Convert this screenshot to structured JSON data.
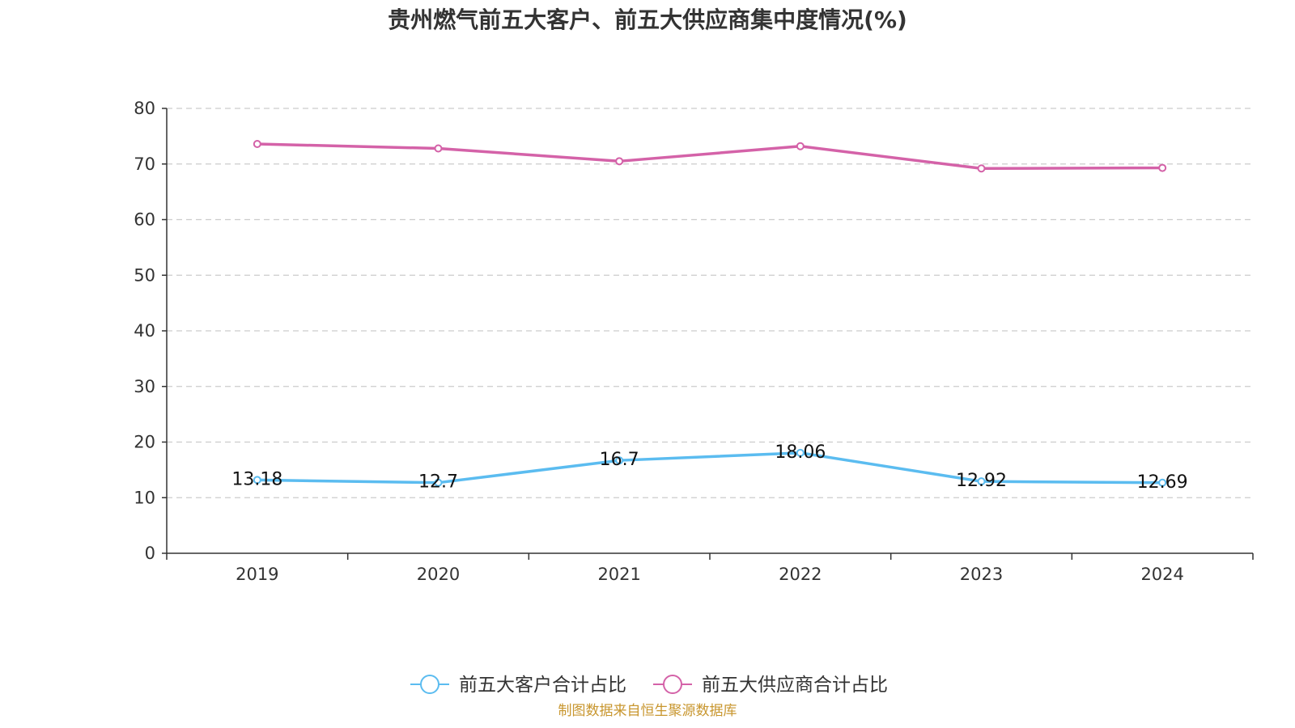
{
  "chart_data": {
    "type": "line",
    "title": "贵州燃气前五大客户、前五大供应商集中度情况(%)",
    "categories": [
      "2019",
      "2020",
      "2021",
      "2022",
      "2023",
      "2024"
    ],
    "series": [
      {
        "name": "前五大客户合计占比",
        "color": "#5bbcf0",
        "values": [
          13.18,
          12.7,
          16.7,
          18.06,
          12.92,
          12.69
        ],
        "show_labels": true
      },
      {
        "name": "前五大供应商合计占比",
        "color": "#d462a8",
        "values": [
          73.6,
          72.8,
          70.5,
          73.2,
          69.2,
          69.3
        ],
        "show_labels": false
      }
    ],
    "ylim": [
      0,
      80
    ],
    "yticks": [
      "0",
      "10",
      "20",
      "30",
      "40",
      "50",
      "60",
      "70",
      "80"
    ],
    "grid": true,
    "legend_position": "bottom"
  },
  "source_note": "制图数据来自恒生聚源数据库"
}
